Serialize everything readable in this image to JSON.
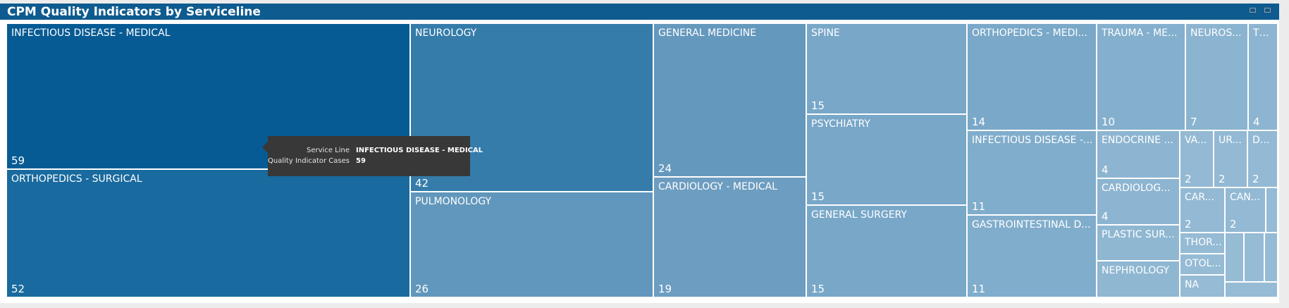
{
  "title": "CPM Quality Indicators by Serviceline",
  "chart_data": {
    "type": "treemap",
    "measure": "Quality Indicator Cases",
    "category": "Service Line",
    "tiles": [
      {
        "label": "INFECTIOUS DISEASE - MEDICAL",
        "value": 59,
        "color": "#075b94"
      },
      {
        "label": "ORTHOPEDICS - SURGICAL",
        "value": 52,
        "color": "#196a9e"
      },
      {
        "label": "NEUROLOGY",
        "value": 42,
        "color": "#357caa"
      },
      {
        "label": "PULMONOLOGY",
        "value": 26,
        "color": "#6197bc"
      },
      {
        "label": "GENERAL MEDICINE",
        "value": 24,
        "color": "#6598bd"
      },
      {
        "label": "CARDIOLOGY - MEDICAL",
        "value": 19,
        "color": "#6d9dc0"
      },
      {
        "label": "SPINE",
        "value": 15,
        "color": "#78a7c8"
      },
      {
        "label": "PSYCHIATRY",
        "value": 15,
        "color": "#78a7c8"
      },
      {
        "label": "GENERAL SURGERY",
        "value": 15,
        "color": "#78a7c8"
      },
      {
        "label": "ORTHOPEDICS - MEDI...",
        "value": 14,
        "color": "#7aa8c9"
      },
      {
        "label": "INFECTIOUS DISEASE -...",
        "value": 11,
        "color": "#81adcc"
      },
      {
        "label": "GASTROINTESTINAL D...",
        "value": 11,
        "color": "#81adcc"
      },
      {
        "label": "TRAUMA - ME...",
        "value": 10,
        "color": "#84afcd"
      },
      {
        "label": "NEUROS...",
        "value": 7,
        "color": "#8bb4d0"
      },
      {
        "label": "TRA...",
        "value": 4,
        "color": "#8db5d1"
      },
      {
        "label": "ENDOCRINE ...",
        "value": 4,
        "color": "#8db5d1"
      },
      {
        "label": "CARDIOLOG...",
        "value": 4,
        "color": "#8db5d1"
      },
      {
        "label": "PLASTIC SUR...",
        "value": null,
        "color": "#8fb7d2"
      },
      {
        "label": "NEPHROLOGY",
        "value": null,
        "color": "#8fb7d2"
      },
      {
        "label": "VA...",
        "value": 2,
        "color": "#93b9d4"
      },
      {
        "label": "UR...",
        "value": 2,
        "color": "#93b9d4"
      },
      {
        "label": "DE...",
        "value": 2,
        "color": "#93b9d4"
      },
      {
        "label": "CAR...",
        "value": 2,
        "color": "#93b9d4"
      },
      {
        "label": "CAN...",
        "value": 2,
        "color": "#93b9d4"
      },
      {
        "label": "",
        "value": null,
        "color": "#95bbd5"
      },
      {
        "label": "THOR...",
        "value": null,
        "color": "#95bbd5"
      },
      {
        "label": "OTOL...",
        "value": null,
        "color": "#95bbd5"
      },
      {
        "label": "NA",
        "value": null,
        "color": "#95bbd5"
      },
      {
        "label": "",
        "value": null,
        "color": "#95bbd5"
      },
      {
        "label": "",
        "value": null,
        "color": "#95bbd5"
      },
      {
        "label": "",
        "value": null,
        "color": "#95bbd5"
      },
      {
        "label": "",
        "value": null,
        "color": "#95bbd5"
      }
    ]
  },
  "tooltip": {
    "rows": [
      {
        "key": "Service Line",
        "value": "INFECTIOUS DISEASE - MEDICAL"
      },
      {
        "key": "Quality Indicator Cases",
        "value": "59"
      }
    ]
  }
}
